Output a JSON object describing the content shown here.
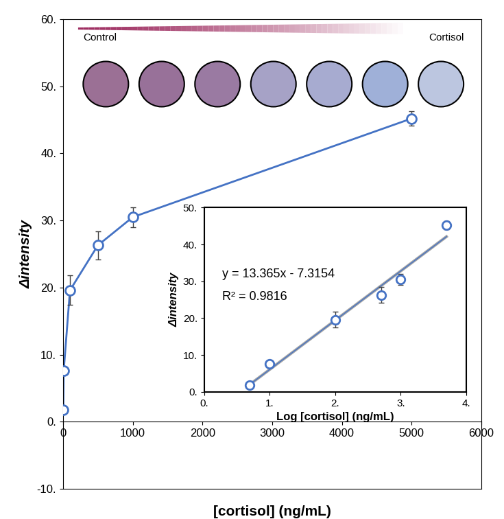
{
  "chart_data": [
    {
      "type": "scatter",
      "x_label": "[cortisol] (ng/mL)",
      "y_label": "Δintensity",
      "annotations": [
        "Control",
        "Cortisol"
      ],
      "x": [
        5,
        10,
        100,
        500,
        1000,
        5000
      ],
      "values": [
        1.8,
        7.6,
        19.6,
        26.3,
        30.5,
        45.2
      ],
      "errors": [
        0.3,
        0.4,
        2.2,
        2.1,
        1.5,
        1.1
      ],
      "color": "#4472c4",
      "marker": "o",
      "line_style": "solid",
      "xlim": [
        0,
        6000
      ],
      "xticks": [
        0,
        1000,
        2000,
        3000,
        4000,
        5000,
        6000
      ],
      "ylim": [
        -10,
        60
      ],
      "yticks": [
        {
          "value": -10,
          "label": "-10."
        },
        {
          "value": 0,
          "label": "0."
        },
        {
          "value": 10,
          "label": "10."
        },
        {
          "value": 20,
          "label": "20."
        },
        {
          "value": 30,
          "label": "30."
        },
        {
          "value": 40,
          "label": "40."
        },
        {
          "value": 50,
          "label": "50."
        },
        {
          "value": 60,
          "label": "60."
        }
      ]
    },
    {
      "type": "scatter",
      "x_label": "Log [cortisol] (ng/mL)",
      "y_label": "Δintensity",
      "annotations": [
        "y = 13.365x - 7.3154",
        "R² = 0.9816"
      ],
      "x": [
        0.699,
        1.0,
        2.0,
        2.699,
        3.0,
        3.699
      ],
      "values": [
        1.8,
        7.6,
        19.6,
        26.3,
        30.5,
        45.2
      ],
      "errors": [
        0.3,
        0.4,
        2.2,
        2.1,
        1.5,
        1.1
      ],
      "color": "#4472c4",
      "marker": "o",
      "trendline": {
        "slope": 13.365,
        "intercept": -7.3154,
        "color": "#a6a6a6"
      },
      "xlim": [
        0,
        4
      ],
      "xticks": [
        {
          "value": 0,
          "label": "0."
        },
        {
          "value": 1,
          "label": "1."
        },
        {
          "value": 2,
          "label": "2."
        },
        {
          "value": 3,
          "label": "3."
        },
        {
          "value": 4,
          "label": "4."
        }
      ],
      "ylim": [
        0,
        50
      ],
      "yticks": [
        {
          "value": 0,
          "label": "0."
        },
        {
          "value": 10,
          "label": "10."
        },
        {
          "value": 20,
          "label": "20."
        },
        {
          "value": 30,
          "label": "30."
        },
        {
          "value": 40,
          "label": "40."
        },
        {
          "value": 50,
          "label": "50."
        }
      ]
    }
  ]
}
